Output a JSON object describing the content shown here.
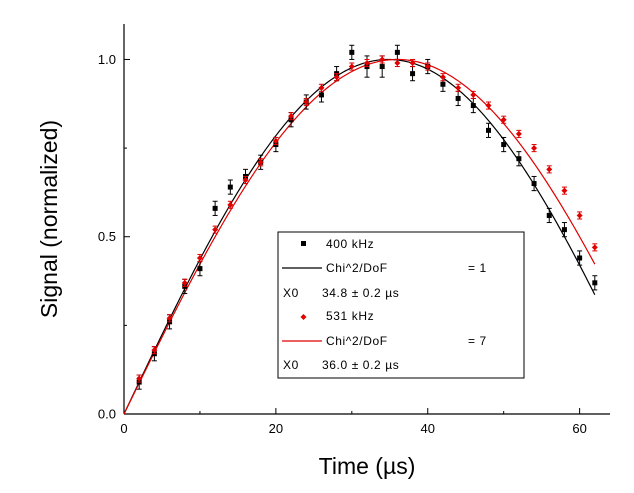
{
  "chart_data": {
    "type": "scatter",
    "xlabel": "Time (µs)",
    "ylabel": "Signal (normalized)",
    "xlim": [
      0,
      64
    ],
    "ylim": [
      0,
      1.1
    ],
    "x_ticks": [
      0,
      20,
      40,
      60
    ],
    "y_ticks": [
      0.0,
      0.5,
      1.0
    ],
    "x_tick_labels": [
      "0",
      "20",
      "40",
      "60"
    ],
    "y_tick_labels": [
      "0.0",
      "0.5",
      "1.0"
    ],
    "series": [
      {
        "name": "400 kHz",
        "color": "#000000",
        "marker": "square",
        "x": [
          2,
          4,
          6,
          8,
          10,
          12,
          14,
          16,
          18,
          20,
          22,
          24,
          26,
          28,
          30,
          32,
          34,
          36,
          38,
          40,
          42,
          44,
          46,
          48,
          50,
          52,
          54,
          56,
          58,
          60,
          62
        ],
        "y": [
          0.09,
          0.17,
          0.26,
          0.36,
          0.41,
          0.58,
          0.64,
          0.67,
          0.71,
          0.76,
          0.83,
          0.88,
          0.9,
          0.96,
          1.02,
          0.98,
          0.98,
          1.02,
          0.96,
          0.98,
          0.93,
          0.89,
          0.87,
          0.8,
          0.76,
          0.72,
          0.65,
          0.56,
          0.52,
          0.44,
          0.37
        ],
        "err": [
          0.02,
          0.02,
          0.02,
          0.02,
          0.02,
          0.02,
          0.02,
          0.02,
          0.02,
          0.02,
          0.02,
          0.02,
          0.02,
          0.02,
          0.02,
          0.03,
          0.03,
          0.02,
          0.02,
          0.02,
          0.02,
          0.02,
          0.02,
          0.02,
          0.02,
          0.02,
          0.02,
          0.02,
          0.02,
          0.02,
          0.02
        ]
      },
      {
        "name": "531 kHz",
        "color": "#e00000",
        "marker": "diamond",
        "x": [
          2,
          4,
          6,
          8,
          10,
          12,
          14,
          16,
          18,
          20,
          22,
          24,
          26,
          28,
          30,
          32,
          34,
          36,
          38,
          40,
          42,
          44,
          46,
          48,
          50,
          52,
          54,
          56,
          58,
          60,
          62
        ],
        "y": [
          0.1,
          0.18,
          0.27,
          0.37,
          0.44,
          0.52,
          0.59,
          0.66,
          0.71,
          0.77,
          0.84,
          0.88,
          0.92,
          0.95,
          0.98,
          0.99,
          1.0,
          0.99,
          0.99,
          0.98,
          0.95,
          0.92,
          0.9,
          0.87,
          0.83,
          0.79,
          0.75,
          0.69,
          0.63,
          0.56,
          0.47
        ],
        "err": [
          0.01,
          0.01,
          0.01,
          0.01,
          0.01,
          0.01,
          0.01,
          0.01,
          0.01,
          0.01,
          0.01,
          0.01,
          0.01,
          0.01,
          0.01,
          0.01,
          0.01,
          0.01,
          0.01,
          0.01,
          0.01,
          0.01,
          0.01,
          0.01,
          0.01,
          0.01,
          0.01,
          0.01,
          0.01,
          0.01,
          0.01
        ]
      }
    ],
    "fits": [
      {
        "name": "400 kHz fit",
        "color": "#000000",
        "model": "A*sin(pi*t/(2*X0))",
        "X0": 34.8,
        "A": 1.0,
        "x_range": [
          0,
          62
        ]
      },
      {
        "name": "531 kHz fit",
        "color": "#e00000",
        "model": "A*sin(pi*t/(2*X0))",
        "X0": 36.0,
        "A": 1.0,
        "x_range": [
          0,
          62
        ]
      }
    ]
  },
  "legend": {
    "placement": "lower-right",
    "entries": [
      {
        "label": "400 kHz",
        "kind": "marker",
        "color": "#000000"
      },
      {
        "label": "Chi^2/DoF",
        "value": "= 1",
        "kind": "line",
        "color": "#000000"
      },
      {
        "label": "X0",
        "value": "34.8 ±  0.2 µs",
        "kind": "param"
      },
      {
        "label": "531 kHz",
        "kind": "marker",
        "color": "#e00000"
      },
      {
        "label": "Chi^2/DoF",
        "value": "= 7",
        "kind": "line",
        "color": "#e00000"
      },
      {
        "label": "X0",
        "value": "36.0 ±  0.2 µs",
        "kind": "param"
      }
    ]
  }
}
